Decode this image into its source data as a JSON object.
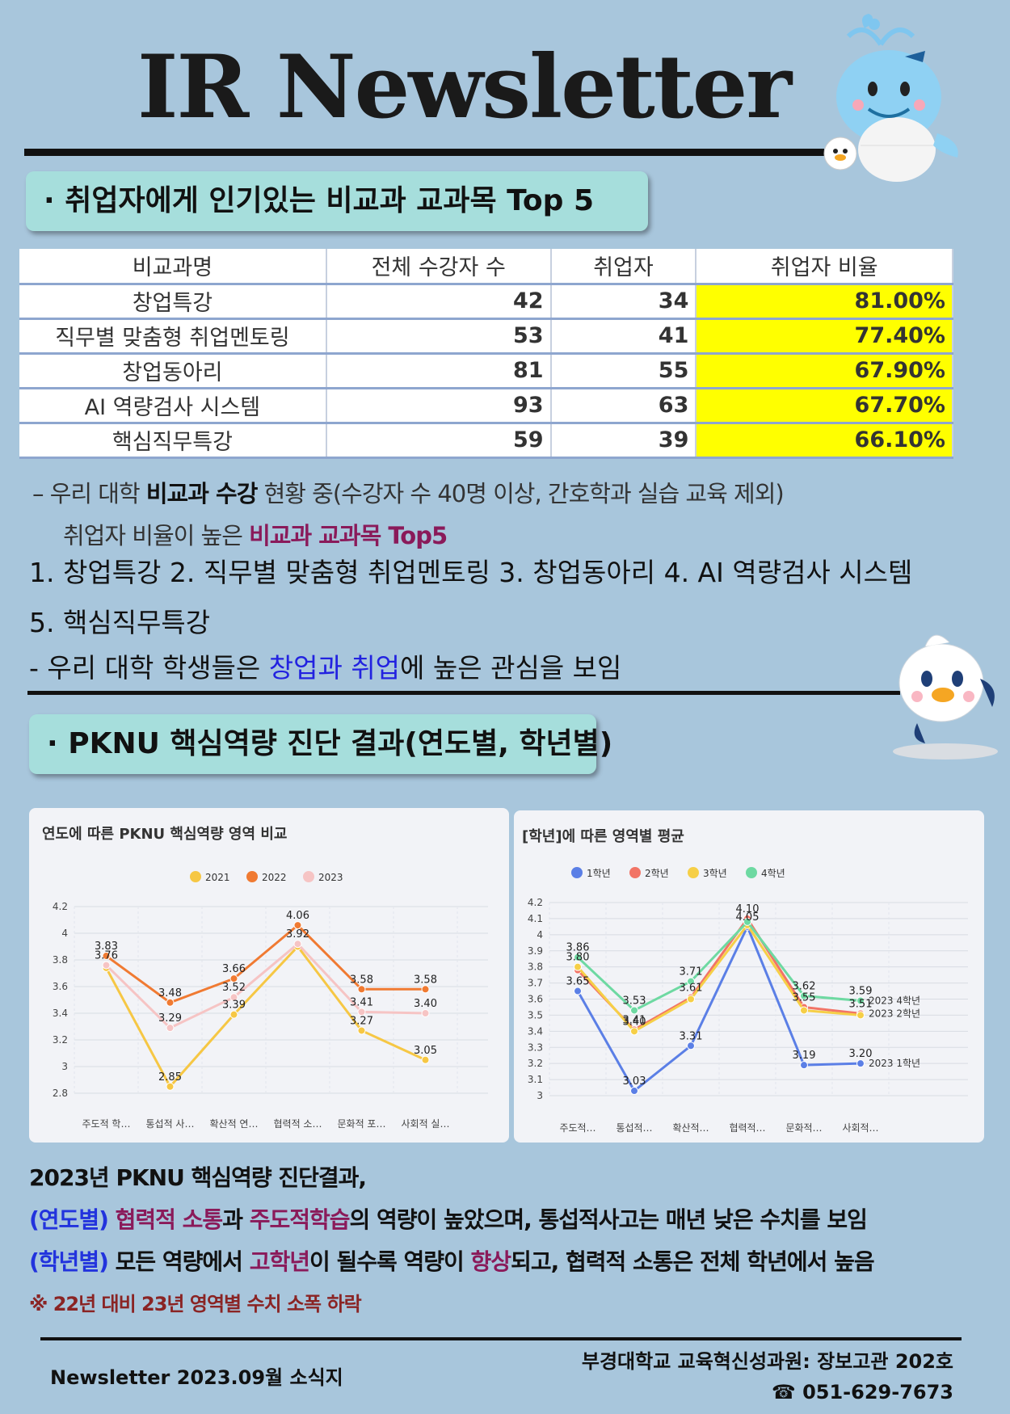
{
  "header": {
    "title": "IR Newsletter"
  },
  "section1": {
    "heading": "· 취업자에게 인기있는 비교과 교과목 Top 5",
    "table": {
      "columns": [
        "비교과명",
        "전체 수강자 수",
        "취업자",
        "취업자 비율"
      ],
      "rows": [
        {
          "name": "창업특강",
          "total": "42",
          "employed": "34",
          "rate": "81.00%"
        },
        {
          "name": "직무별 맞춤형 취업멘토링",
          "total": "53",
          "employed": "41",
          "rate": "77.40%"
        },
        {
          "name": "창업동아리",
          "total": "81",
          "employed": "55",
          "rate": "67.90%"
        },
        {
          "name": "AI 역량검사 시스템",
          "total": "93",
          "employed": "63",
          "rate": "67.70%"
        },
        {
          "name": "핵심직무특강",
          "total": "59",
          "employed": "39",
          "rate": "66.10%"
        }
      ]
    },
    "note_a1": "–  우리 대학 ",
    "note_a2": "비교과 수강",
    "note_a3": " 현황 중(수강자 수 40명 이상, 간호학과 실습 교육 제외)",
    "note_b1": "취업자 비율이 높은 ",
    "note_b2": "비교과 교과목  Top5",
    "list_line1": "1. 창업특강  2. 직무별 맞춤형 취업멘토링  3. 창업동아리  4. AI 역량검사 시스템",
    "list_line2": "5. 핵심직무특강",
    "note_c1": "-  우리 대학 학생들은 ",
    "note_c2": "창업과 취업",
    "note_c3": "에 높은 관심을 보임"
  },
  "section2": {
    "heading": "· PKNU 핵심역량 진단 결과(연도별, 학년별)"
  },
  "chart_data": [
    {
      "type": "line",
      "title": "연도에 따른 PKNU 핵심역량 영역 비교",
      "categories": [
        "주도적 학…",
        "통섭적 사…",
        "확산적 연…",
        "협력적 소…",
        "문화적 포…",
        "사회적 실…"
      ],
      "ylim": [
        2.8,
        4.2
      ],
      "yticks": [
        "4.2",
        "4",
        "3.8",
        "3.6",
        "3.4",
        "3.2",
        "3",
        "2.8"
      ],
      "legend": "top",
      "grid": true,
      "series": [
        {
          "name": "2021",
          "color": "#f6c744",
          "values": [
            3.74,
            2.85,
            3.39,
            3.9,
            3.27,
            3.05
          ]
        },
        {
          "name": "2022",
          "color": "#f07a32",
          "values": [
            3.83,
            3.48,
            3.66,
            4.06,
            3.58,
            3.58
          ]
        },
        {
          "name": "2023",
          "color": "#f6c4c4",
          "values": [
            3.76,
            3.29,
            3.52,
            3.92,
            3.41,
            3.4
          ]
        }
      ],
      "labels": [
        {
          "cat": 0,
          "y": 3.83,
          "text": "3.83"
        },
        {
          "cat": 0,
          "y": 3.76,
          "text": "3.76"
        },
        {
          "cat": 1,
          "y": 3.48,
          "text": "3.48"
        },
        {
          "cat": 1,
          "y": 3.29,
          "text": "3.29"
        },
        {
          "cat": 1,
          "y": 2.85,
          "text": "2.85"
        },
        {
          "cat": 2,
          "y": 3.66,
          "text": "3.66"
        },
        {
          "cat": 2,
          "y": 3.52,
          "text": "3.52"
        },
        {
          "cat": 2,
          "y": 3.39,
          "text": "3.39"
        },
        {
          "cat": 3,
          "y": 4.06,
          "text": "4.06"
        },
        {
          "cat": 3,
          "y": 3.92,
          "text": "3.92"
        },
        {
          "cat": 4,
          "y": 3.58,
          "text": "3.58"
        },
        {
          "cat": 4,
          "y": 3.41,
          "text": "3.41"
        },
        {
          "cat": 4,
          "y": 3.27,
          "text": "3.27"
        },
        {
          "cat": 5,
          "y": 3.58,
          "text": "3.58"
        },
        {
          "cat": 5,
          "y": 3.4,
          "text": "3.40"
        },
        {
          "cat": 5,
          "y": 3.05,
          "text": "3.05"
        }
      ]
    },
    {
      "type": "line",
      "title": "[학년]에 따른 영역별 평균",
      "categories": [
        "주도적…",
        "통섭적…",
        "확산적…",
        "협력적…",
        "문화적…",
        "사회적…"
      ],
      "ylim": [
        3.0,
        4.2
      ],
      "yticks": [
        "4.2",
        "4.1",
        "4",
        "3.9",
        "3.8",
        "3.7",
        "3.6",
        "3.5",
        "3.4",
        "3.3",
        "3.2",
        "3.1",
        "3"
      ],
      "legend": "top",
      "grid": true,
      "series": [
        {
          "name": "1학년",
          "end_label": "2023 1학년",
          "color": "#5b7fe6",
          "values": [
            3.65,
            3.03,
            3.31,
            4.05,
            3.19,
            3.2
          ]
        },
        {
          "name": "2학년",
          "end_label": "2023 2학년",
          "color": "#f27466",
          "values": [
            3.78,
            3.41,
            3.61,
            4.1,
            3.55,
            3.51
          ]
        },
        {
          "name": "3학년",
          "end_label": "",
          "color": "#f6cf47",
          "values": [
            3.8,
            3.4,
            3.6,
            4.06,
            3.53,
            3.5
          ]
        },
        {
          "name": "4학년",
          "end_label": "2023 4학년",
          "color": "#6ed9a2",
          "values": [
            3.86,
            3.53,
            3.71,
            4.08,
            3.62,
            3.59
          ]
        }
      ],
      "labels": [
        {
          "cat": 0,
          "y": 3.86,
          "text": "3.86"
        },
        {
          "cat": 0,
          "y": 3.8,
          "text": "3.80"
        },
        {
          "cat": 0,
          "y": 3.65,
          "text": "3.65"
        },
        {
          "cat": 1,
          "y": 3.53,
          "text": "3.53"
        },
        {
          "cat": 1,
          "y": 3.41,
          "text": "3.41"
        },
        {
          "cat": 1,
          "y": 3.4,
          "text": "3.40"
        },
        {
          "cat": 1,
          "y": 3.03,
          "text": "3.03"
        },
        {
          "cat": 2,
          "y": 3.71,
          "text": "3.71"
        },
        {
          "cat": 2,
          "y": 3.61,
          "text": "3.61"
        },
        {
          "cat": 2,
          "y": 3.31,
          "text": "3.31"
        },
        {
          "cat": 3,
          "y": 4.1,
          "text": "4.10"
        },
        {
          "cat": 3,
          "y": 4.05,
          "text": "4.05"
        },
        {
          "cat": 4,
          "y": 3.62,
          "text": "3.62"
        },
        {
          "cat": 4,
          "y": 3.55,
          "text": "3.55"
        },
        {
          "cat": 4,
          "y": 3.19,
          "text": "3.19"
        },
        {
          "cat": 5,
          "y": 3.59,
          "text": "3.59"
        },
        {
          "cat": 5,
          "y": 3.51,
          "text": "3.51"
        },
        {
          "cat": 5,
          "y": 3.2,
          "text": "3.20"
        }
      ]
    }
  ],
  "summary": {
    "line1": "2023년 PKNU 핵심역량 진단결과,",
    "l2_a": "(연도별) ",
    "l2_b": "협력적 소통",
    "l2_c": "과 ",
    "l2_d": "주도적학습",
    "l2_e": "의 역량이 높았으며, 통섭적사고는 매년 낮은 수치를 보임",
    "l3_a": "(학년별) ",
    "l3_b": "모든 역량에서 ",
    "l3_c": "고학년",
    "l3_d": "이 될수록 역량이 ",
    "l3_e": "향상",
    "l3_f": "되고, 협력적 소통은 전체 학년에서 높음",
    "warning": "※ 22년 대비 23년 영역별 수치 소폭 하락"
  },
  "footer": {
    "left": "Newsletter 2023.09월 소식지",
    "right1": "부경대학교 교육혁신성과원: 장보고관 202호",
    "right2": "☎ 051-629-7673"
  }
}
